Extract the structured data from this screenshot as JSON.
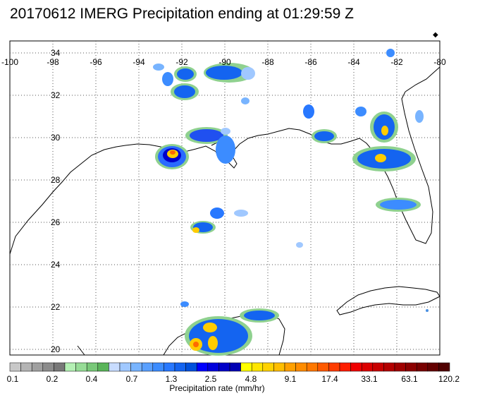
{
  "title": "20170612 IMERG Precipitation ending at 01:29:59 Z",
  "map": {
    "lon_ticks": [
      "-100",
      "-98",
      "-96",
      "-94",
      "-92",
      "-90",
      "-88",
      "-86",
      "-84",
      "-82",
      "-80"
    ],
    "lat_ticks": [
      "34",
      "32",
      "30",
      "28",
      "26",
      "24",
      "22",
      "20"
    ],
    "grid": "dotted"
  },
  "colorbar": {
    "labels": [
      "0.1",
      "0.2",
      "0.4",
      "0.7",
      "1.3",
      "2.5",
      "4.8",
      "9.1",
      "17.4",
      "33.1",
      "63.1",
      "120.2"
    ],
    "title": "Precipitation rate (mm/hr)",
    "colors": [
      "#c8c8c8",
      "#b4b4b4",
      "#a0a0a0",
      "#8c8c8c",
      "#787878",
      "#b4f0b4",
      "#96dc96",
      "#78c878",
      "#5ab45a",
      "#c8dcff",
      "#a0c8ff",
      "#78b4ff",
      "#5aa0ff",
      "#3c8cff",
      "#2878ff",
      "#1464f0",
      "#0050dc",
      "#0000ff",
      "#0000dc",
      "#0000c8",
      "#0000b4",
      "#ffff00",
      "#ffe600",
      "#ffd200",
      "#ffbe00",
      "#ffa000",
      "#ff8c00",
      "#ff7800",
      "#ff5a00",
      "#ff3c00",
      "#ff1e00",
      "#f00000",
      "#dc0000",
      "#c80000",
      "#b40000",
      "#a00000",
      "#8c0000",
      "#780000",
      "#640000",
      "#500000"
    ]
  }
}
